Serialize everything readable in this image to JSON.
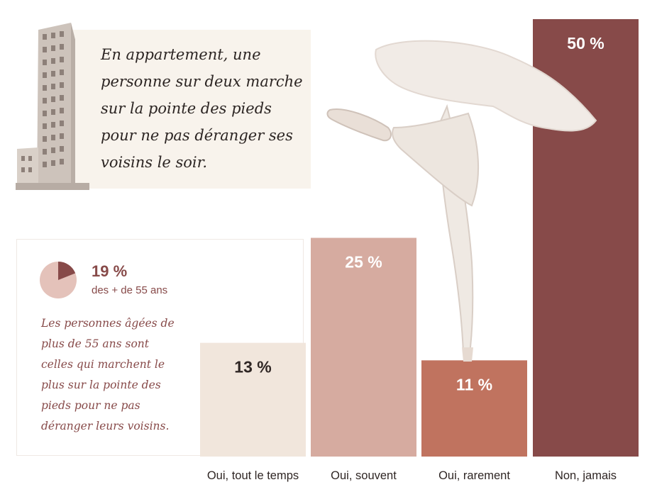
{
  "quote": {
    "lines": [
      "En appartement, une",
      "personne sur deux marche",
      "sur la pointe des pieds",
      "pour ne pas déranger ses",
      "voisins le soir."
    ]
  },
  "inset": {
    "pie_fraction": 0.19,
    "value": "19 %",
    "label": "des + de 55 ans",
    "lines": [
      "Les personnes âgées de",
      "plus de 55 ans sont",
      "celles qui marchent le",
      "plus sur la pointe des",
      "pieds pour ne pas",
      "déranger leurs voisins."
    ]
  },
  "chart_data": {
    "type": "bar",
    "categories": [
      "Oui, tout le temps",
      "Oui, souvent",
      "Oui, rarement",
      "Non, jamais"
    ],
    "values": [
      13,
      25,
      11,
      50
    ],
    "labels": [
      "13 %",
      "25 %",
      "11 %",
      "50 %"
    ],
    "colors": [
      "#f1e6dc",
      "#d6aba0",
      "#c0735f",
      "#874a49"
    ],
    "ylim": [
      0,
      50
    ],
    "grid": false,
    "legend": "none"
  },
  "colors": {
    "accent": "#874a49",
    "quote_background": "#f8f3ec",
    "pie_light": "#e4c2ba"
  },
  "icons": {
    "building": "building-illustration",
    "dancer": "ballerina-illustration"
  }
}
